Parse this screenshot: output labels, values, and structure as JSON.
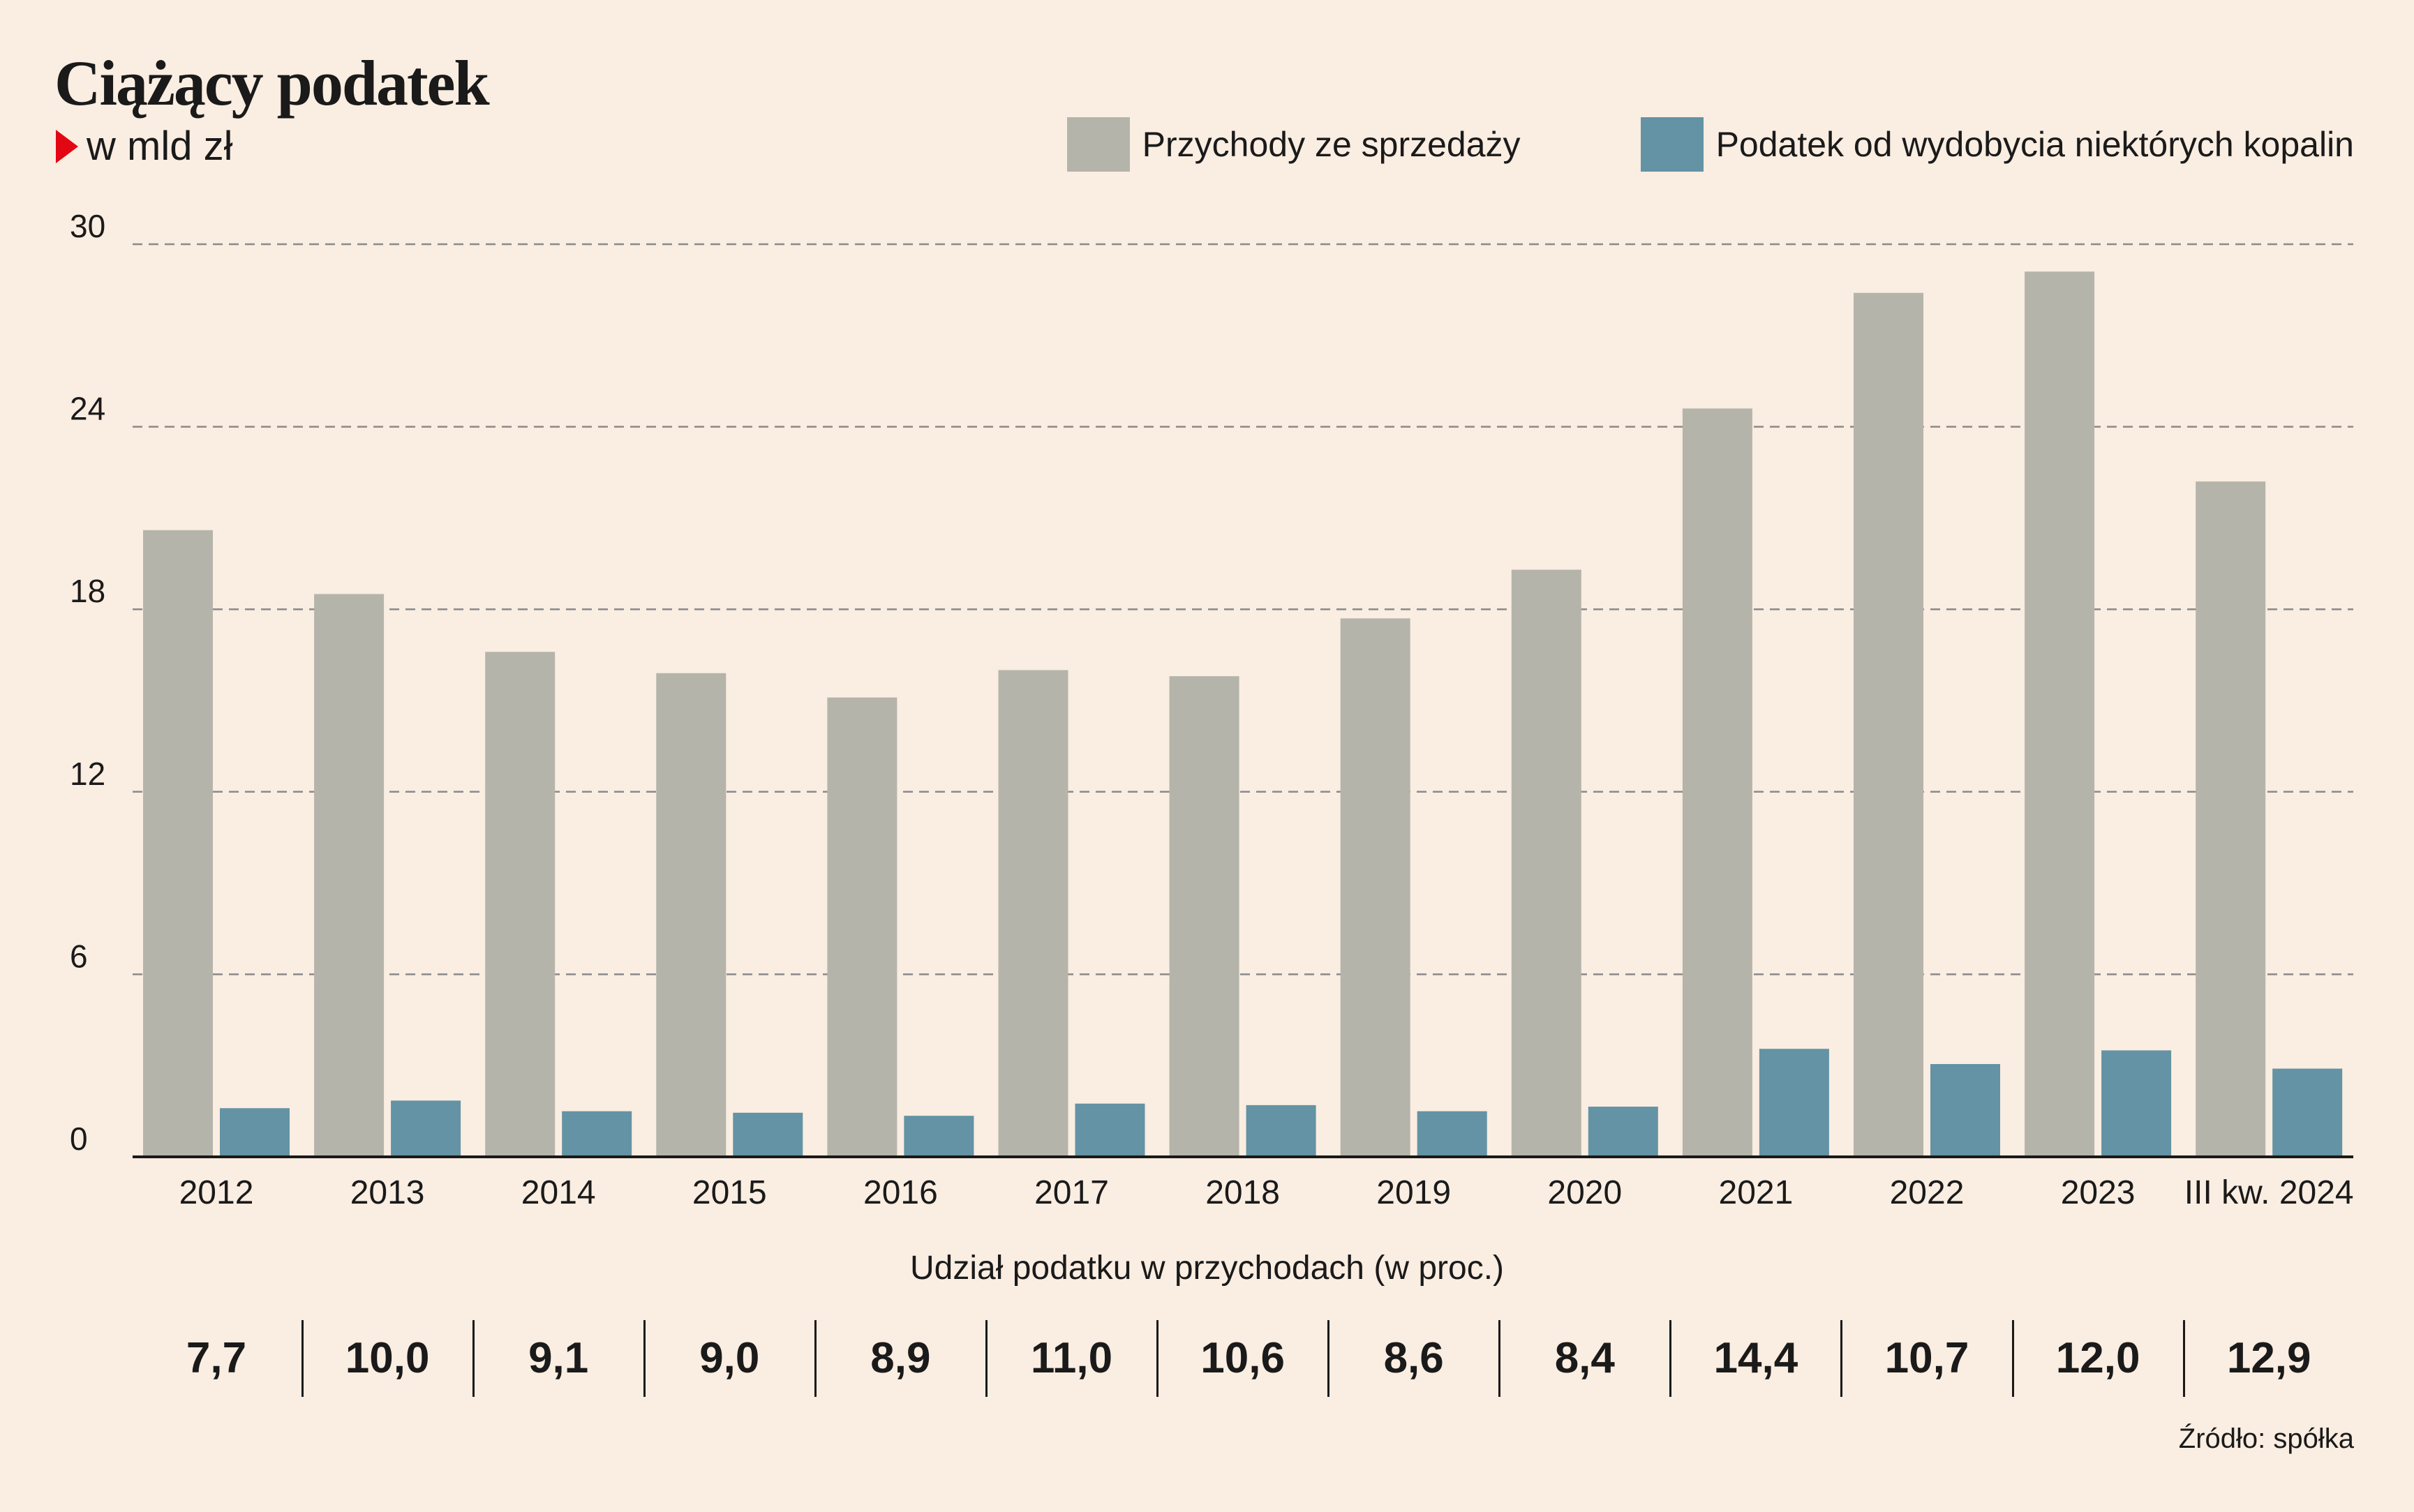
{
  "chart_data": {
    "type": "bar",
    "title": "Ciążący podatek",
    "subtitle": "w mld zł",
    "categories": [
      "2012",
      "2013",
      "2014",
      "2015",
      "2016",
      "2017",
      "2018",
      "2019",
      "2020",
      "2021",
      "2022",
      "2023",
      "III kw. 2024"
    ],
    "series": [
      {
        "name": "Przychody ze sprzedaży",
        "color": "#b5b4ab",
        "values": [
          20.6,
          18.5,
          16.6,
          15.9,
          15.1,
          16.0,
          15.8,
          17.7,
          19.3,
          24.6,
          28.4,
          29.1,
          22.2
        ]
      },
      {
        "name": "Podatek od wydobycia niektórych kopalin",
        "color": "#6393a4",
        "values": [
          1.6,
          1.85,
          1.5,
          1.45,
          1.35,
          1.75,
          1.7,
          1.5,
          1.65,
          3.55,
          3.05,
          3.5,
          2.9
        ]
      }
    ],
    "ylim": [
      0,
      30
    ],
    "yticks": [
      0,
      6,
      12,
      18,
      24,
      30
    ],
    "grid": true,
    "legend_position": "top-right",
    "share_label": "Udział podatku w przychodach (w proc.)",
    "share_values": [
      "7,7",
      "10,0",
      "9,1",
      "9,0",
      "8,9",
      "11,0",
      "10,6",
      "8,6",
      "8,4",
      "14,4",
      "10,7",
      "12,0",
      "12,9"
    ],
    "source": "Źródło: spółka"
  }
}
